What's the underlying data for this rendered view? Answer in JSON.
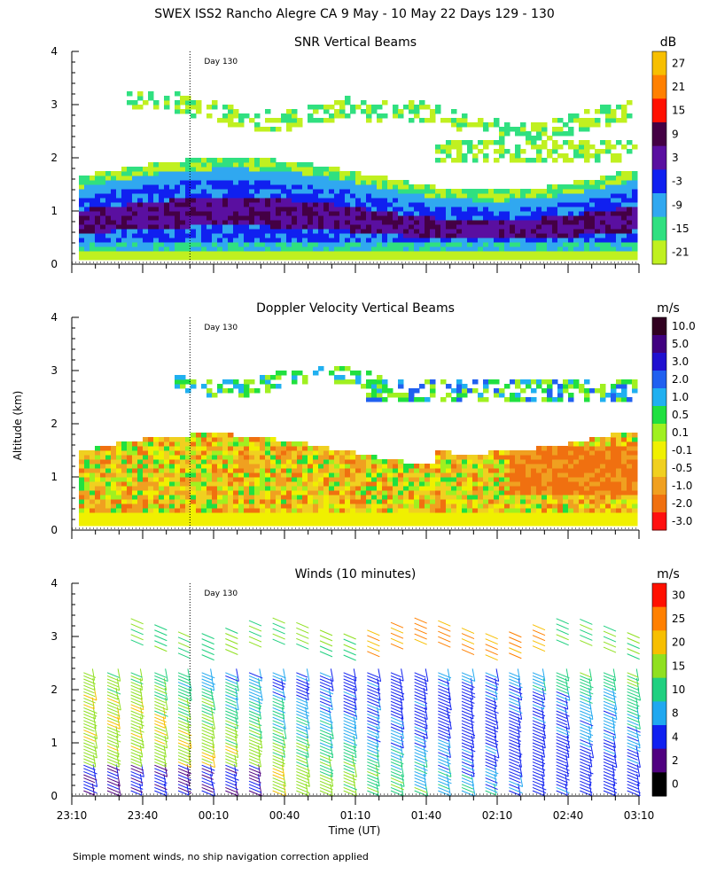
{
  "title": "SWEX ISS2 Rancho Alegre CA    9 May - 10 May 22 Days 129 - 130",
  "y_axis_label": "Altitude (km)",
  "x_axis_label": "Time (UT)",
  "footnote": "Simple moment winds, no ship navigation correction applied",
  "day_marker_label": "Day 130",
  "chart_data": [
    {
      "type": "heatmap",
      "title": "SNR Vertical Beams",
      "colorbar_unit": "dB",
      "colorbar_labels": [
        "27",
        "21",
        "15",
        "9",
        "3",
        "-3",
        "-9",
        "-15",
        "-21"
      ],
      "colorbar_colors": [
        "#f7bf00",
        "#ff8000",
        "#ff1000",
        "#440044",
        "#5a0fa0",
        "#1020f0",
        "#30a8f0",
        "#30e080",
        "#c0f020"
      ],
      "x_ticks": [
        "23:10",
        "23:40",
        "00:10",
        "00:40",
        "01:10",
        "01:40",
        "02:10",
        "02:40",
        "03:10"
      ],
      "y_ticks": [
        "0",
        "1",
        "2",
        "3",
        "4"
      ],
      "ylim": [
        0,
        4
      ],
      "day_boundary": "00:00"
    },
    {
      "type": "heatmap",
      "title": "Doppler Velocity Vertical Beams",
      "colorbar_unit": "m/s",
      "colorbar_labels": [
        "10.0",
        "5.0",
        "3.0",
        "2.0",
        "1.0",
        "0.5",
        "0.1",
        "-0.1",
        "-0.5",
        "-1.0",
        "-2.0",
        "-3.0"
      ],
      "colorbar_colors": [
        "#300020",
        "#400080",
        "#2010d0",
        "#2060f0",
        "#20b0f0",
        "#20e040",
        "#a0f020",
        "#f0f000",
        "#f0d020",
        "#f0a020",
        "#f07010",
        "#ff1010"
      ],
      "x_ticks": [
        "23:10",
        "23:40",
        "00:10",
        "00:40",
        "01:10",
        "01:40",
        "02:10",
        "02:40",
        "03:10"
      ],
      "y_ticks": [
        "0",
        "1",
        "2",
        "3",
        "4"
      ],
      "ylim": [
        0,
        4
      ],
      "day_boundary": "00:00"
    },
    {
      "type": "scatter",
      "title": "Winds (10 minutes)",
      "colorbar_unit": "m/s",
      "colorbar_labels": [
        "30",
        "25",
        "20",
        "15",
        "10",
        "8",
        "4",
        "2",
        "0"
      ],
      "colorbar_colors": [
        "#ff1000",
        "#ff8000",
        "#f7bf00",
        "#90e020",
        "#20d080",
        "#20a8f0",
        "#1020f0",
        "#500080",
        "#000000"
      ],
      "x_ticks": [
        "23:10",
        "23:40",
        "00:10",
        "00:40",
        "01:10",
        "01:40",
        "02:10",
        "02:40",
        "03:10"
      ],
      "y_ticks": [
        "0",
        "1",
        "2",
        "3",
        "4"
      ],
      "ylim": [
        0,
        4
      ],
      "day_boundary": "00:00"
    }
  ]
}
